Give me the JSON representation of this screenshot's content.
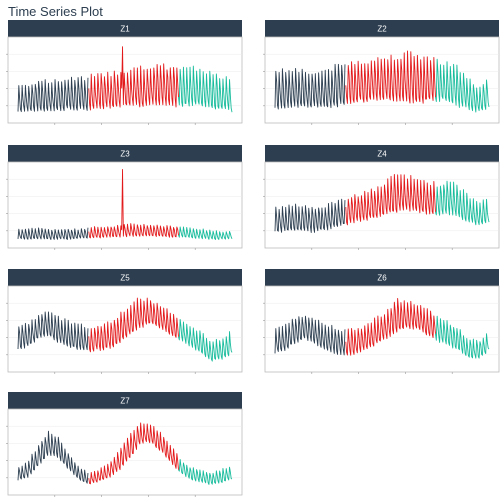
{
  "title": "Time Series Plot",
  "colors": {
    "segment_1": "#2c3e50",
    "segment_2": "#e31a1c",
    "segment_3": "#18bc9c",
    "strip_bg": "#2c3e50",
    "panel_border": "#bbbbbb",
    "grid": "#ebebeb"
  },
  "chart_data": {
    "type": "line",
    "facet_layout": {
      "columns": 2,
      "rows": 4
    },
    "x": {
      "start": 0,
      "end": 1,
      "ticks_visible": true
    },
    "segments": [
      {
        "from": 0.0,
        "to": 0.33,
        "color": "#2c3e50"
      },
      {
        "from": 0.33,
        "to": 0.75,
        "color": "#e31a1c"
      },
      {
        "from": 0.75,
        "to": 1.0,
        "color": "#18bc9c"
      }
    ],
    "facets": [
      {
        "label": "Z1",
        "envelope_low": [
          0.05,
          0.05,
          0.07,
          0.06,
          0.07,
          0.08,
          0.07,
          0.07,
          0.1,
          0.1,
          0.12,
          0.13,
          0.12,
          0.13,
          0.13,
          0.12,
          0.12,
          0.13,
          0.12,
          0.1,
          0.08,
          0.05
        ],
        "envelope_high": [
          0.45,
          0.47,
          0.52,
          0.5,
          0.52,
          0.55,
          0.55,
          0.58,
          0.6,
          0.62,
          0.65,
          0.68,
          0.7,
          0.7,
          0.72,
          0.72,
          0.72,
          0.7,
          0.68,
          0.65,
          0.55,
          0.55
        ],
        "spikes": [
          {
            "at": 0.49,
            "value": 0.95
          }
        ]
      },
      {
        "label": "Z2",
        "envelope_low": [
          0.08,
          0.08,
          0.1,
          0.1,
          0.12,
          0.1,
          0.12,
          0.15,
          0.18,
          0.18,
          0.2,
          0.2,
          0.18,
          0.15,
          0.15,
          0.18,
          0.2,
          0.18,
          0.12,
          0.08,
          0.05,
          0.1
        ],
        "envelope_high": [
          0.65,
          0.68,
          0.7,
          0.65,
          0.62,
          0.68,
          0.72,
          0.75,
          0.8,
          0.8,
          0.82,
          0.85,
          0.88,
          0.9,
          0.88,
          0.85,
          0.8,
          0.78,
          0.7,
          0.55,
          0.4,
          0.55
        ],
        "spikes": []
      },
      {
        "label": "Z3",
        "envelope_low": [
          0.03,
          0.03,
          0.04,
          0.03,
          0.03,
          0.03,
          0.04,
          0.05,
          0.05,
          0.06,
          0.06,
          0.07,
          0.07,
          0.07,
          0.07,
          0.06,
          0.06,
          0.05,
          0.04,
          0.03,
          0.03,
          0.04
        ],
        "envelope_high": [
          0.18,
          0.2,
          0.2,
          0.18,
          0.17,
          0.18,
          0.18,
          0.2,
          0.22,
          0.22,
          0.24,
          0.25,
          0.25,
          0.24,
          0.23,
          0.22,
          0.22,
          0.2,
          0.18,
          0.16,
          0.15,
          0.16
        ],
        "spikes": [
          {
            "at": 0.49,
            "value": 0.98
          }
        ]
      },
      {
        "label": "Z4",
        "envelope_low": [
          0.12,
          0.12,
          0.14,
          0.12,
          0.12,
          0.15,
          0.18,
          0.22,
          0.25,
          0.28,
          0.32,
          0.35,
          0.38,
          0.4,
          0.38,
          0.36,
          0.35,
          0.35,
          0.32,
          0.25,
          0.2,
          0.25
        ],
        "envelope_high": [
          0.48,
          0.5,
          0.52,
          0.5,
          0.5,
          0.52,
          0.55,
          0.62,
          0.66,
          0.7,
          0.75,
          0.85,
          0.95,
          0.92,
          0.88,
          0.85,
          0.8,
          0.85,
          0.78,
          0.65,
          0.55,
          0.6
        ],
        "spikes": []
      },
      {
        "label": "Z5",
        "envelope_low": [
          0.2,
          0.25,
          0.35,
          0.4,
          0.3,
          0.25,
          0.2,
          0.18,
          0.2,
          0.22,
          0.3,
          0.4,
          0.5,
          0.55,
          0.5,
          0.4,
          0.32,
          0.25,
          0.15,
          0.05,
          0.08,
          0.15
        ],
        "envelope_high": [
          0.55,
          0.6,
          0.7,
          0.75,
          0.68,
          0.62,
          0.6,
          0.55,
          0.55,
          0.62,
          0.72,
          0.85,
          0.95,
          0.92,
          0.85,
          0.75,
          0.65,
          0.55,
          0.48,
          0.35,
          0.38,
          0.5
        ],
        "spikes": []
      },
      {
        "label": "Z6",
        "envelope_low": [
          0.15,
          0.2,
          0.3,
          0.35,
          0.28,
          0.2,
          0.15,
          0.12,
          0.15,
          0.2,
          0.28,
          0.35,
          0.45,
          0.5,
          0.48,
          0.4,
          0.32,
          0.25,
          0.2,
          0.1,
          0.08,
          0.2
        ],
        "envelope_high": [
          0.5,
          0.58,
          0.68,
          0.72,
          0.65,
          0.58,
          0.55,
          0.5,
          0.52,
          0.58,
          0.68,
          0.78,
          0.92,
          0.9,
          0.85,
          0.78,
          0.7,
          0.62,
          0.52,
          0.38,
          0.35,
          0.48
        ],
        "spikes": []
      },
      {
        "label": "Z7",
        "envelope_low": [
          0.1,
          0.15,
          0.3,
          0.45,
          0.4,
          0.25,
          0.12,
          0.05,
          0.1,
          0.15,
          0.25,
          0.4,
          0.6,
          0.62,
          0.5,
          0.35,
          0.2,
          0.12,
          0.08,
          0.05,
          0.08,
          0.12
        ],
        "envelope_high": [
          0.3,
          0.4,
          0.6,
          0.8,
          0.7,
          0.5,
          0.3,
          0.22,
          0.28,
          0.38,
          0.55,
          0.75,
          0.92,
          0.9,
          0.78,
          0.6,
          0.4,
          0.3,
          0.28,
          0.22,
          0.28,
          0.32
        ],
        "spikes": []
      }
    ]
  }
}
